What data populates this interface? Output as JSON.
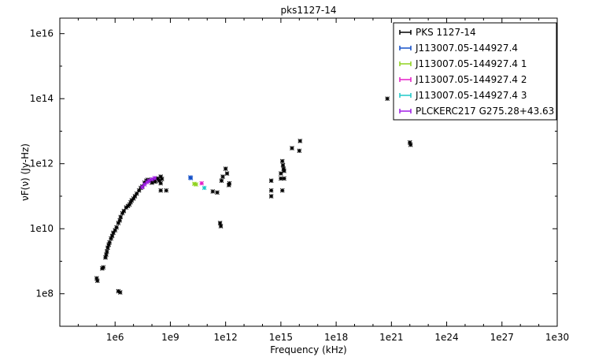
{
  "chart_data": {
    "type": "scatter",
    "title": "pks1127-14",
    "xlabel": "Frequency (kHz)",
    "ylabel": "νF(ν) (Jy-Hz)",
    "x_scale": "log",
    "y_scale": "log",
    "xlim": [
      1000.0,
      1e+30
    ],
    "ylim": [
      10000000.0,
      3e+16
    ],
    "x_ticks": [
      1000000.0,
      1000000000.0,
      1000000000000.0,
      1000000000000000.0,
      1e+18,
      1e+21,
      1e+24,
      1e+27,
      1e+30
    ],
    "x_tick_labels": [
      "1e6",
      "1e9",
      "1e12",
      "1e15",
      "1e18",
      "1e21",
      "1e24",
      "1e27",
      "1e30"
    ],
    "y_ticks": [
      100000000.0,
      10000000000.0,
      1000000000000.0,
      100000000000000.0,
      1e+16
    ],
    "y_tick_labels": [
      "1e8",
      "1e10",
      "1e12",
      "1e14",
      "1e16"
    ],
    "grid": false,
    "legend_position": "top-right",
    "series": [
      {
        "name": "PKS 1127-14",
        "color": "#000000",
        "points": [
          [
            100000.0,
            300000000.0
          ],
          [
            110000.0,
            250000000.0
          ],
          [
            200000.0,
            600000000.0
          ],
          [
            230000.0,
            650000000.0
          ],
          [
            300000.0,
            1300000000.0
          ],
          [
            330000.0,
            1600000000.0
          ],
          [
            360000.0,
            2000000000.0
          ],
          [
            400000.0,
            2600000000.0
          ],
          [
            450000.0,
            3200000000.0
          ],
          [
            500000.0,
            3800000000.0
          ],
          [
            600000.0,
            5000000000.0
          ],
          [
            700000.0,
            6000000000.0
          ],
          [
            800000.0,
            7500000000.0
          ],
          [
            1000000.0,
            9000000000.0
          ],
          [
            1200000.0,
            11000000000.0
          ],
          [
            1500000.0,
            15000000000.0
          ],
          [
            1800000.0,
            18000000000.0
          ],
          [
            2000000.0,
            23000000000.0
          ],
          [
            2500000.0,
            30000000000.0
          ],
          [
            3000000.0,
            35000000000.0
          ],
          [
            4000000.0,
            45000000000.0
          ],
          [
            5000000.0,
            50000000000.0
          ],
          [
            6000000.0,
            55000000000.0
          ],
          [
            7000000.0,
            65000000000.0
          ],
          [
            8000000.0,
            75000000000.0
          ],
          [
            10000000.0,
            85000000000.0
          ],
          [
            12000000.0,
            100000000000.0
          ],
          [
            15000000.0,
            120000000000.0
          ],
          [
            20000000.0,
            150000000000.0
          ],
          [
            25000000.0,
            180000000000.0
          ],
          [
            30000000.0,
            200000000000.0
          ],
          [
            40000000.0,
            260000000000.0
          ],
          [
            50000000.0,
            300000000000.0
          ],
          [
            60000000.0,
            320000000000.0
          ],
          [
            80000000.0,
            300000000000.0
          ],
          [
            100000000.0,
            260000000000.0
          ],
          [
            120000000.0,
            320000000000.0
          ],
          [
            150000000.0,
            280000000000.0
          ],
          [
            200000000.0,
            350000000000.0
          ],
          [
            250000000.0,
            300000000000.0
          ],
          [
            300000000.0,
            150000000000.0
          ],
          [
            350000000.0,
            340000000000.0
          ],
          [
            600000000.0,
            150000000000.0
          ],
          [
            300000000.0,
            400000000000.0
          ],
          [
            300000000.0,
            250000000000.0
          ],
          [
            1500000.0,
            120000000.0
          ],
          [
            1900000.0,
            110000000.0
          ],
          [
            200000000000.0,
            140000000000.0
          ],
          [
            350000000000.0,
            130000000000.0
          ],
          [
            500000000000.0,
            15000000000.0
          ],
          [
            550000000000.0,
            12000000000.0
          ],
          [
            600000000000.0,
            300000000000.0
          ],
          [
            700000000000.0,
            400000000000.0
          ],
          [
            1000000000000.0,
            700000000000.0
          ],
          [
            1200000000000.0,
            500000000000.0
          ],
          [
            1600000000000.0,
            250000000000.0
          ],
          [
            1500000000000.0,
            220000000000.0
          ],
          [
            300000000000000.0,
            300000000000.0
          ],
          [
            300000000000000.0,
            150000000000.0
          ],
          [
            300000000000000.0,
            100000000000.0
          ],
          [
            1000000000000000.0,
            500000000000.0
          ],
          [
            1000000000000000.0,
            350000000000.0
          ],
          [
            1200000000000000.0,
            1200000000000.0
          ],
          [
            1300000000000000.0,
            900000000000.0
          ],
          [
            1400000000000000.0,
            700000000000.0
          ],
          [
            1500000000000000.0,
            600000000000.0
          ],
          [
            1200000000000000.0,
            150000000000.0
          ],
          [
            1500000000000000.0,
            350000000000.0
          ],
          [
            4000000000000000.0,
            3000000000000.0
          ],
          [
            1e+16,
            2500000000000.0
          ],
          [
            1.1e+16,
            5000000000000.0
          ],
          [
            6e+20,
            100000000000000.0
          ],
          [
            1e+22,
            4500000000000.0
          ],
          [
            1.1e+22,
            3800000000000.0
          ]
        ]
      },
      {
        "name": "J113007.05-144927.4",
        "color": "#1450c8",
        "points": [
          [
            12000000000.0,
            380000000000.0
          ],
          [
            13000000000.0,
            360000000000.0
          ]
        ]
      },
      {
        "name": "J113007.05-144927.4 1",
        "color": "#8fd21e",
        "points": [
          [
            20000000000.0,
            240000000000.0
          ],
          [
            25000000000.0,
            230000000000.0
          ]
        ]
      },
      {
        "name": "J113007.05-144927.4 2",
        "color": "#e61ec8",
        "points": [
          [
            50000000000.0,
            250000000000.0
          ]
        ]
      },
      {
        "name": "J113007.05-144927.4 3",
        "color": "#1ec8c8",
        "points": [
          [
            70000000000.0,
            180000000000.0
          ]
        ]
      },
      {
        "name": "PLCKERC217 G275.28+43.63",
        "color": "#a01ee6",
        "points": [
          [
            30000000.0,
            190000000000.0
          ],
          [
            40000000.0,
            230000000000.0
          ],
          [
            55000000.0,
            270000000000.0
          ],
          [
            70000000.0,
            300000000000.0
          ],
          [
            100000000.0,
            330000000000.0
          ],
          [
            140000000.0,
            360000000000.0
          ]
        ]
      }
    ]
  }
}
